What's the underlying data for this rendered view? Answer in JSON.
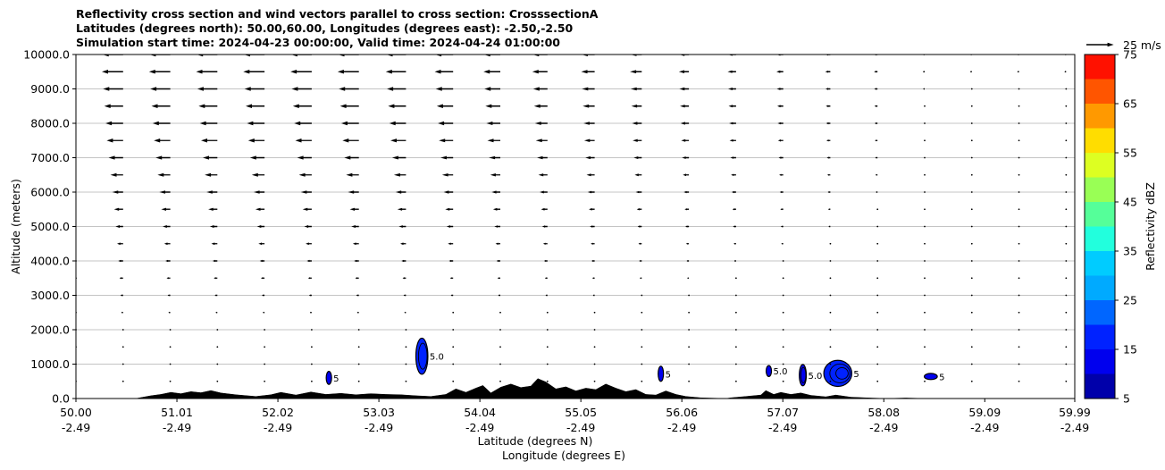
{
  "chart_data": {
    "type": "cross-section",
    "title_lines": [
      "Reflectivity cross section and wind vectors parallel to cross section: CrosssectionA",
      "Latitudes (degrees north): 50.00,60.00, Longitudes (degrees east): -2.50,-2.50",
      "Simulation start time: 2024-04-23 00:00:00, Valid time: 2024-04-24 01:00:00"
    ],
    "xlabel_lat": "Latitude (degrees N)",
    "xlabel_lon": "Longitude (degrees E)",
    "ylabel": "Altitude (meters)",
    "xlim": [
      50.0,
      59.99
    ],
    "ylim": [
      0,
      10000
    ],
    "x_ticks": [
      {
        "lat": "50.00",
        "lon": "-2.49",
        "value": 50.0
      },
      {
        "lat": "51.01",
        "lon": "-2.49",
        "value": 51.01
      },
      {
        "lat": "52.02",
        "lon": "-2.49",
        "value": 52.02
      },
      {
        "lat": "53.03",
        "lon": "-2.49",
        "value": 53.03
      },
      {
        "lat": "54.04",
        "lon": "-2.49",
        "value": 54.04
      },
      {
        "lat": "55.05",
        "lon": "-2.49",
        "value": 55.05
      },
      {
        "lat": "56.06",
        "lon": "-2.49",
        "value": 56.06
      },
      {
        "lat": "57.07",
        "lon": "-2.49",
        "value": 57.07
      },
      {
        "lat": "58.08",
        "lon": "-2.49",
        "value": 58.08
      },
      {
        "lat": "59.09",
        "lon": "-2.49",
        "value": 59.09
      },
      {
        "lat": "59.99",
        "lon": "-2.49",
        "value": 59.99
      }
    ],
    "y_ticks": [
      {
        "label": "0.0",
        "value": 0
      },
      {
        "label": "1000.0",
        "value": 1000
      },
      {
        "label": "2000.0",
        "value": 2000
      },
      {
        "label": "3000.0",
        "value": 3000
      },
      {
        "label": "4000.0",
        "value": 4000
      },
      {
        "label": "5000.0",
        "value": 5000
      },
      {
        "label": "6000.0",
        "value": 6000
      },
      {
        "label": "7000.0",
        "value": 7000
      },
      {
        "label": "8000.0",
        "value": 8000
      },
      {
        "label": "9000.0",
        "value": 9000
      },
      {
        "label": "10000.0",
        "value": 10000
      }
    ],
    "grid": "horizontal",
    "colorbar": {
      "label": "Reflectivity dBZ",
      "min": 5,
      "max": 75,
      "levels": [
        5,
        10,
        15,
        20,
        25,
        30,
        35,
        40,
        45,
        50,
        55,
        60,
        65,
        70,
        75
      ],
      "tick_labels": [
        "5",
        "15",
        "25",
        "35",
        "45",
        "55",
        "65",
        "75"
      ],
      "colors": [
        "#0000aa",
        "#0000ee",
        "#0022ff",
        "#0066ff",
        "#00aaff",
        "#00ccff",
        "#22ffdd",
        "#55ff99",
        "#99ff55",
        "#ddff22",
        "#ffdd00",
        "#ff9900",
        "#ff5500",
        "#ff1100",
        "#aa0000"
      ]
    },
    "quiver_key": {
      "label": "25 m/s",
      "speed": 25
    },
    "wind_vectors": {
      "lat_start": 50.0,
      "lat_step": 0.4716,
      "alt_start": 500,
      "alt_step": 500,
      "u_profile": [
        {
          "alt": 500,
          "u": 0.3
        },
        {
          "alt": 1000,
          "u": 0.3
        },
        {
          "alt": 1500,
          "u": -0.6
        },
        {
          "alt": 2000,
          "u": -1.0
        },
        {
          "alt": 2500,
          "u": -1.5
        },
        {
          "alt": 3000,
          "u": -2.2
        },
        {
          "alt": 3500,
          "u": -3.0
        },
        {
          "alt": 4000,
          "u": -4.0
        },
        {
          "alt": 4500,
          "u": -5.0
        },
        {
          "alt": 5000,
          "u": -6.2
        },
        {
          "alt": 5500,
          "u": -7.5
        },
        {
          "alt": 6000,
          "u": -9.0
        },
        {
          "alt": 6500,
          "u": -10.5
        },
        {
          "alt": 7000,
          "u": -12.0
        },
        {
          "alt": 7500,
          "u": -13.5
        },
        {
          "alt": 8000,
          "u": -14.5
        },
        {
          "alt": 8500,
          "u": -15.5
        },
        {
          "alt": 9000,
          "u": -16.5
        },
        {
          "alt": 9500,
          "u": -17.5
        },
        {
          "alt": 10000,
          "u": -17.0
        }
      ],
      "lat_decay_start": 53.0,
      "lat_decay_end": 58.5,
      "lat_decay_min": 0.08
    },
    "terrain": [
      [
        50.0,
        0
      ],
      [
        50.6,
        0
      ],
      [
        50.75,
        80
      ],
      [
        50.85,
        120
      ],
      [
        50.95,
        180
      ],
      [
        51.05,
        140
      ],
      [
        51.15,
        200
      ],
      [
        51.25,
        170
      ],
      [
        51.35,
        230
      ],
      [
        51.45,
        160
      ],
      [
        51.6,
        110
      ],
      [
        51.8,
        60
      ],
      [
        51.95,
        110
      ],
      [
        52.05,
        180
      ],
      [
        52.2,
        100
      ],
      [
        52.35,
        190
      ],
      [
        52.5,
        120
      ],
      [
        52.65,
        150
      ],
      [
        52.8,
        110
      ],
      [
        52.95,
        140
      ],
      [
        53.1,
        120
      ],
      [
        53.25,
        110
      ],
      [
        53.4,
        80
      ],
      [
        53.55,
        60
      ],
      [
        53.7,
        120
      ],
      [
        53.8,
        280
      ],
      [
        53.9,
        180
      ],
      [
        54.0,
        300
      ],
      [
        54.07,
        380
      ],
      [
        54.15,
        160
      ],
      [
        54.25,
        330
      ],
      [
        54.35,
        420
      ],
      [
        54.45,
        320
      ],
      [
        54.55,
        360
      ],
      [
        54.62,
        580
      ],
      [
        54.7,
        480
      ],
      [
        54.8,
        280
      ],
      [
        54.9,
        340
      ],
      [
        55.0,
        220
      ],
      [
        55.1,
        300
      ],
      [
        55.2,
        260
      ],
      [
        55.3,
        420
      ],
      [
        55.4,
        300
      ],
      [
        55.5,
        200
      ],
      [
        55.6,
        260
      ],
      [
        55.7,
        120
      ],
      [
        55.8,
        100
      ],
      [
        55.9,
        220
      ],
      [
        56.0,
        120
      ],
      [
        56.1,
        60
      ],
      [
        56.25,
        20
      ],
      [
        56.5,
        0
      ],
      [
        56.55,
        20
      ],
      [
        56.7,
        60
      ],
      [
        56.85,
        100
      ],
      [
        56.9,
        230
      ],
      [
        56.98,
        120
      ],
      [
        57.05,
        180
      ],
      [
        57.15,
        120
      ],
      [
        57.25,
        160
      ],
      [
        57.35,
        90
      ],
      [
        57.5,
        50
      ],
      [
        57.6,
        100
      ],
      [
        57.75,
        40
      ],
      [
        57.9,
        20
      ],
      [
        58.1,
        0
      ],
      [
        58.3,
        15
      ],
      [
        58.5,
        0
      ],
      [
        59.99,
        0
      ]
    ],
    "reflectivity_cells": [
      {
        "lat": 52.53,
        "alt": 600,
        "w": 0.05,
        "h": 380,
        "dbz": 10,
        "label": "5",
        "contour_rings": 1
      },
      {
        "lat": 53.46,
        "alt": 1230,
        "w": 0.12,
        "h": 1050,
        "dbz": 15,
        "label": "5.0",
        "contour_rings": 2
      },
      {
        "lat": 55.85,
        "alt": 720,
        "w": 0.05,
        "h": 440,
        "dbz": 10,
        "label": "5",
        "contour_rings": 1
      },
      {
        "lat": 56.93,
        "alt": 800,
        "w": 0.05,
        "h": 320,
        "dbz": 10,
        "label": "5.0",
        "contour_rings": 1
      },
      {
        "lat": 57.27,
        "alt": 680,
        "w": 0.07,
        "h": 620,
        "dbz": 12,
        "label": "5.0",
        "contour_rings": 2
      },
      {
        "lat": 57.62,
        "alt": 730,
        "w": 0.28,
        "h": 760,
        "dbz": 17,
        "label": "5",
        "contour_rings": 3
      },
      {
        "lat": 58.55,
        "alt": 640,
        "w": 0.13,
        "h": 180,
        "dbz": 10,
        "label": "5",
        "contour_rings": 1
      }
    ]
  }
}
